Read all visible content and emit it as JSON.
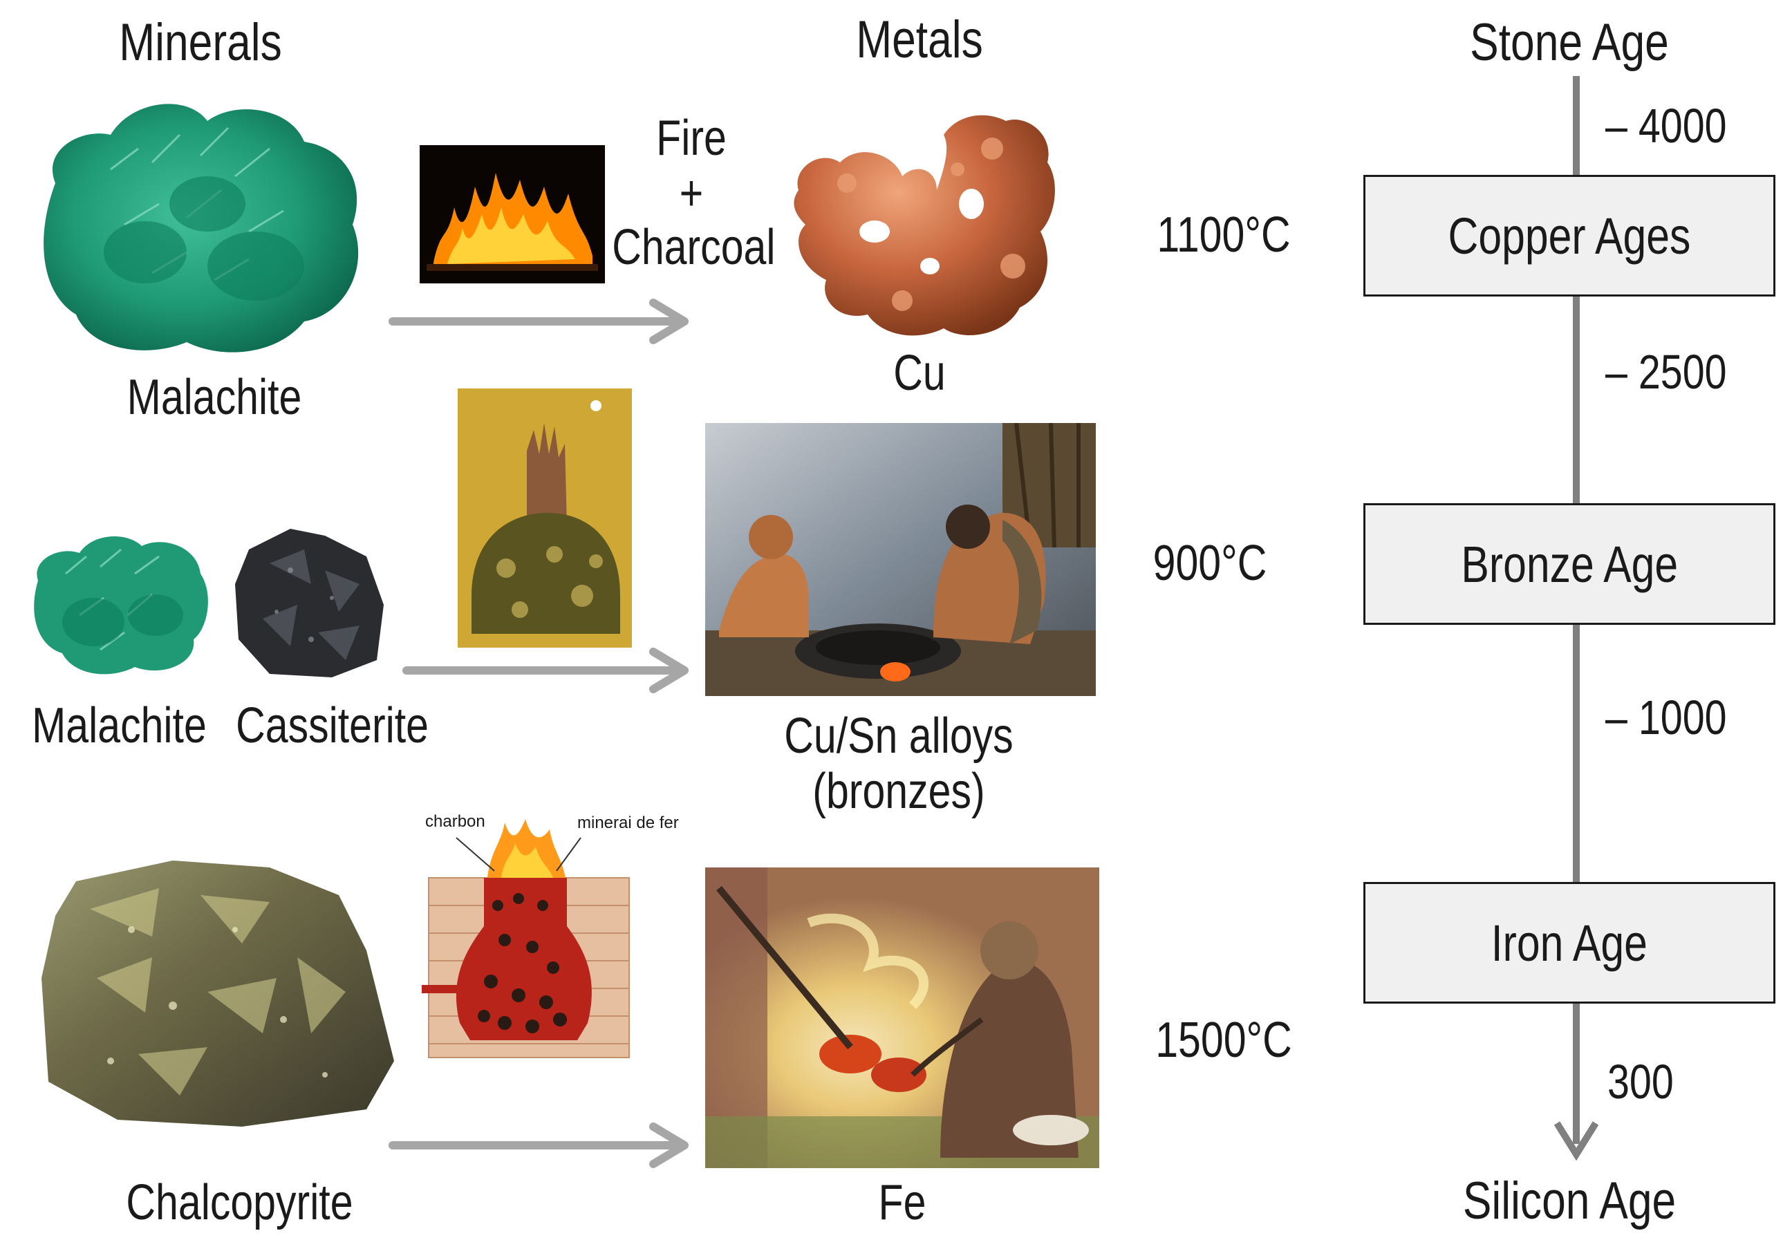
{
  "headers": {
    "minerals": "Minerals",
    "metals": "Metals",
    "stone_age": "Stone Age"
  },
  "process": {
    "fire": "Fire",
    "plus": "+",
    "charcoal": "Charcoal"
  },
  "minerals": {
    "malachite_1": "Malachite",
    "malachite_2": "Malachite",
    "cassiterite": "Cassiterite",
    "chalcopyrite": "Chalcopyrite"
  },
  "metals": {
    "cu": "Cu",
    "cusn_line1": "Cu/Sn alloys",
    "cusn_line2": "(bronzes)",
    "fe": "Fe"
  },
  "temperatures": {
    "copper": "1100°C",
    "bronze": "900°C",
    "iron": "1500°C"
  },
  "furnace_labels": {
    "charbon": "charbon",
    "minerai": "minerai de fer"
  },
  "timeline": {
    "ages": [
      "Copper Ages",
      "Bronze Age",
      "Iron Age"
    ],
    "dates": [
      "– 4000",
      "– 2500",
      "– 1000",
      "300"
    ],
    "end": "Silicon Age"
  }
}
